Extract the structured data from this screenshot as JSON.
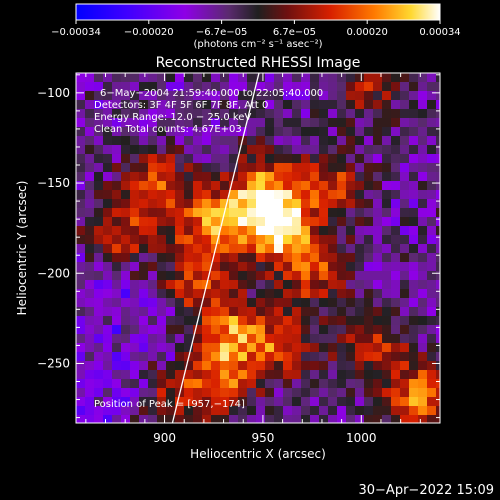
{
  "colorbar": {
    "tick_labels": [
      "−0.00034",
      "−0.00020",
      "−6.7e−05",
      "6.7e−05",
      "0.00020",
      "0.00034"
    ],
    "unit_label": "(photons cm⁻² s⁻¹ asec⁻²)",
    "range": [
      -0.00034,
      0.00034
    ]
  },
  "chart_data": {
    "type": "heatmap",
    "title": "Reconstructed RHESSI Image",
    "xlabel": "Heliocentric X (arcsec)",
    "ylabel": "Heliocentric Y (arcsec)",
    "xlim": [
      855,
      1040
    ],
    "ylim": [
      -283,
      -89
    ],
    "xticks": [
      900,
      950,
      1000
    ],
    "yticks": [
      -100,
      -150,
      -200,
      -250
    ],
    "annotations": [
      "6−May−2004 21:59:40.000 to 22:05:40.000",
      "Detectors: 3F 4F 5F 6F 7F 8F, Att 0",
      "Energy Range: 12.0 − 25.0 keV",
      "Clean     Total counts: 4.67E+03"
    ],
    "peak_label": "Position of Peak = [957,−174]",
    "peak": [
      957,
      -174
    ],
    "limb_line": [
      [
        904,
        -283
      ],
      [
        948,
        -89
      ]
    ],
    "hot_spots": [
      {
        "x": 957,
        "y": -174,
        "intensity": 1.0
      },
      {
        "x": 925,
        "y": -172,
        "intensity": 0.75
      },
      {
        "x": 895,
        "y": -150,
        "intensity": 0.55
      },
      {
        "x": 880,
        "y": -180,
        "intensity": 0.5
      },
      {
        "x": 950,
        "y": -150,
        "intensity": 0.6
      },
      {
        "x": 975,
        "y": -200,
        "intensity": 0.55
      },
      {
        "x": 985,
        "y": -150,
        "intensity": 0.5
      },
      {
        "x": 935,
        "y": -232,
        "intensity": 0.6
      },
      {
        "x": 930,
        "y": -258,
        "intensity": 0.55
      },
      {
        "x": 960,
        "y": -240,
        "intensity": 0.5
      },
      {
        "x": 1030,
        "y": -270,
        "intensity": 0.75
      },
      {
        "x": 1005,
        "y": -240,
        "intensity": 0.45
      },
      {
        "x": 905,
        "y": -270,
        "intensity": 0.4
      },
      {
        "x": 915,
        "y": -205,
        "intensity": 0.5
      },
      {
        "x": 1005,
        "y": -100,
        "intensity": 0.35
      }
    ]
  },
  "footer": {
    "timestamp": "30−Apr−2022 15:09"
  }
}
